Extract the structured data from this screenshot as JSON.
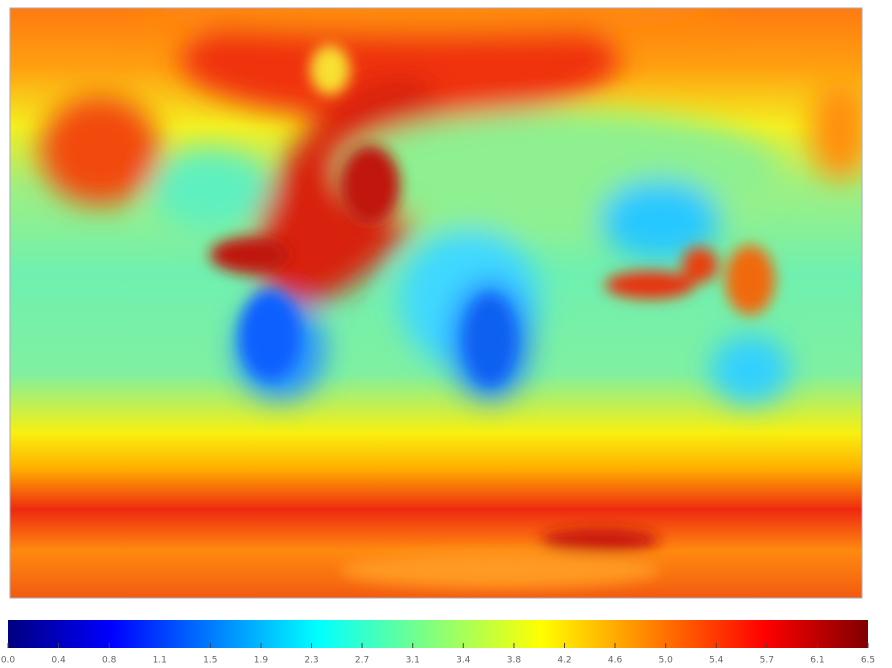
{
  "colorbar": {
    "range": [
      0,
      6.5
    ],
    "ticks": [
      {
        "value": 0,
        "label": "0.0"
      },
      {
        "value": 0.382,
        "label": "0.4"
      },
      {
        "value": 0.765,
        "label": "0.8"
      },
      {
        "value": 1.147,
        "label": "1.1"
      },
      {
        "value": 1.529,
        "label": "1.5"
      },
      {
        "value": 1.912,
        "label": "1.9"
      },
      {
        "value": 2.294,
        "label": "2.3"
      },
      {
        "value": 2.676,
        "label": "2.7"
      },
      {
        "value": 3.059,
        "label": "3.1"
      },
      {
        "value": 3.441,
        "label": "3.4"
      },
      {
        "value": 3.824,
        "label": "3.8"
      },
      {
        "value": 4.206,
        "label": "4.2"
      },
      {
        "value": 4.588,
        "label": "4.6"
      },
      {
        "value": 4.971,
        "label": "5.0"
      },
      {
        "value": 5.353,
        "label": "5.4"
      },
      {
        "value": 5.735,
        "label": "5.7"
      },
      {
        "value": 6.118,
        "label": "6.1"
      },
      {
        "value": 6.5,
        "label": "6.5"
      }
    ]
  }
}
